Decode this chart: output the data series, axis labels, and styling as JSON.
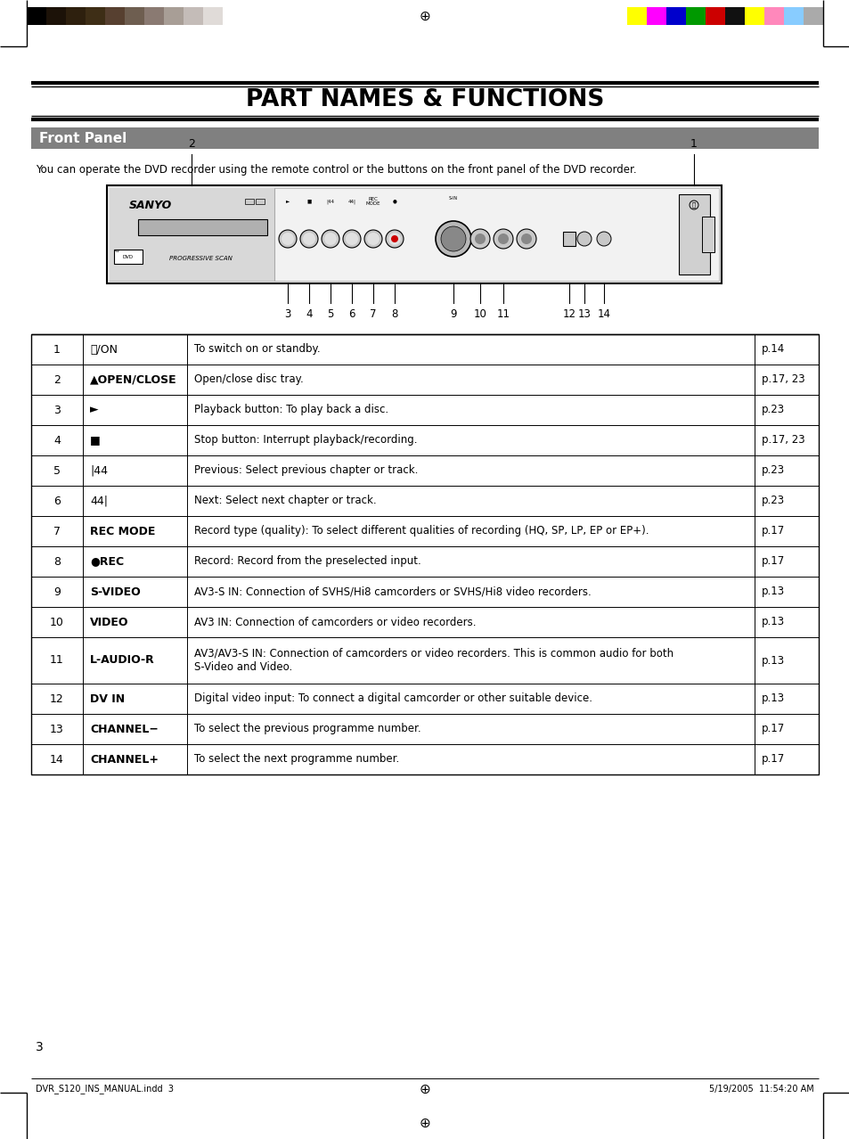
{
  "title": "PART NAMES & FUNCTIONS",
  "section": "Front Panel",
  "section_desc": "You can operate the DVD recorder using the remote control or the buttons on the front panel of the DVD recorder.",
  "bg_color": "#ffffff",
  "section_bg": "#808080",
  "section_text_color": "#ffffff",
  "table_rows": [
    {
      "num": "1",
      "name": "⏻/ON",
      "bold": false,
      "desc": "To switch on or standby.",
      "page": "p.14"
    },
    {
      "num": "2",
      "name": "▲OPEN/CLOSE",
      "bold": true,
      "desc": "Open/close disc tray.",
      "page": "p.17, 23"
    },
    {
      "num": "3",
      "name": "►",
      "bold": false,
      "desc": "Playback button: To play back a disc.",
      "page": "p.23"
    },
    {
      "num": "4",
      "name": "■",
      "bold": false,
      "desc": "Stop button: Interrupt playback/recording.",
      "page": "p.17, 23"
    },
    {
      "num": "5",
      "name": "|44",
      "bold": false,
      "desc": "Previous: Select previous chapter or track.",
      "page": "p.23"
    },
    {
      "num": "6",
      "name": "44|",
      "bold": false,
      "desc": "Next: Select next chapter or track.",
      "page": "p.23"
    },
    {
      "num": "7",
      "name": "REC MODE",
      "bold": true,
      "desc": "Record type (quality): To select different qualities of recording (HQ, SP, LP, EP or EP+).",
      "page": "p.17"
    },
    {
      "num": "8",
      "name": "●REC",
      "bold": true,
      "desc": "Record: Record from the preselected input.",
      "page": "p.17"
    },
    {
      "num": "9",
      "name": "S-VIDEO",
      "bold": true,
      "desc": "AV3-S IN: Connection of SVHS/Hi8 camcorders or SVHS/Hi8 video recorders.",
      "page": "p.13"
    },
    {
      "num": "10",
      "name": "VIDEO",
      "bold": true,
      "desc": "AV3 IN: Connection of camcorders or video recorders.",
      "page": "p.13"
    },
    {
      "num": "11",
      "name": "L-AUDIO-R",
      "bold": true,
      "desc": "AV3/AV3-S IN: Connection of camcorders or video recorders. This is common audio for both\nS-Video and Video.",
      "page": "p.13"
    },
    {
      "num": "12",
      "name": "DV IN",
      "bold": true,
      "desc": "Digital video input: To connect a digital camcorder or other suitable device.",
      "page": "p.13"
    },
    {
      "num": "13",
      "name": "CHANNEL−",
      "bold": true,
      "desc": "To select the previous programme number.",
      "page": "p.17"
    },
    {
      "num": "14",
      "name": "CHANNEL+",
      "bold": true,
      "desc": "To select the next programme number.",
      "page": "p.17"
    }
  ],
  "footer_left": "DVR_S120_INS_MANUAL.indd  3",
  "footer_page": "3",
  "footer_right": "5/19/2005  11:54:20 AM",
  "color_bars_left": [
    "#000000",
    "#1c1208",
    "#2e200e",
    "#3e2e16",
    "#574030",
    "#6e5e50",
    "#8a7a72",
    "#a89e96",
    "#c4bcb8",
    "#e0dbd8",
    "#ffffff"
  ],
  "color_bars_right": [
    "#ffff00",
    "#ff00ff",
    "#0000cc",
    "#009900",
    "#cc0000",
    "#111111",
    "#ffff00",
    "#ff88bb",
    "#88ccff",
    "#aaaaaa"
  ]
}
